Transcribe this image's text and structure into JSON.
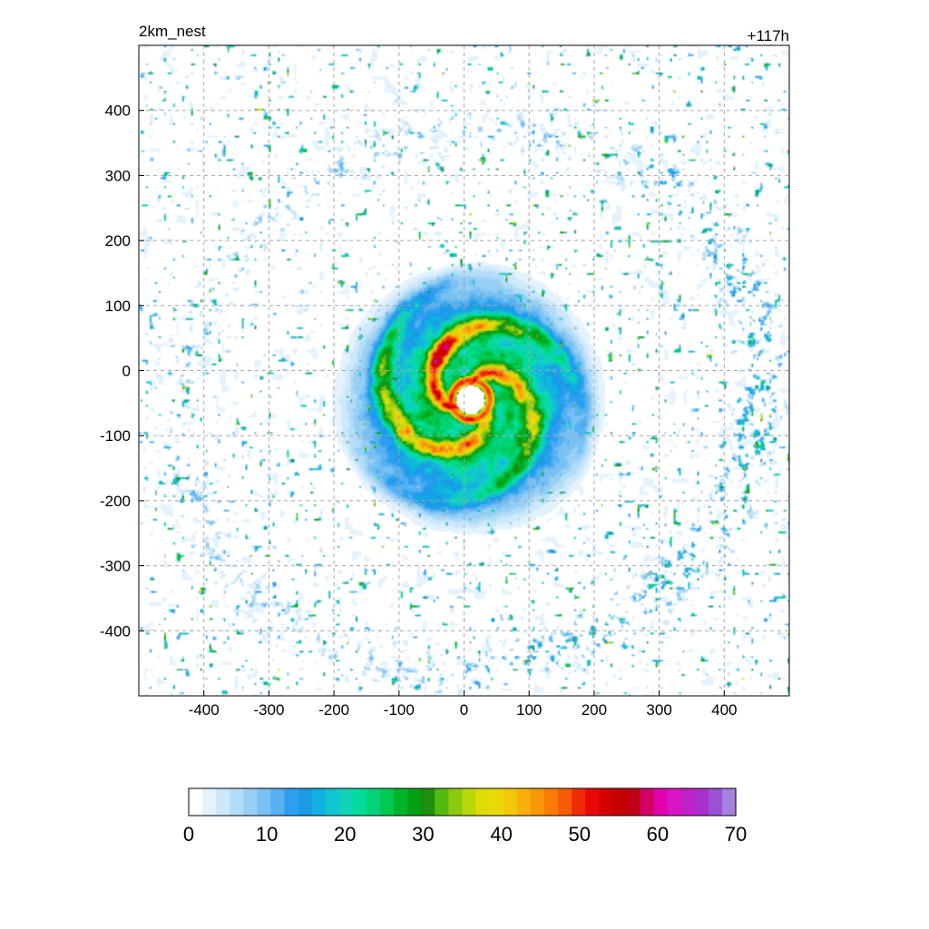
{
  "header": {
    "left_label": "2km_nest",
    "right_label": "+117h"
  },
  "chart_data": {
    "type": "heatmap",
    "title": "",
    "xlabel": "",
    "ylabel": "",
    "xlim": [
      -500,
      500
    ],
    "ylim": [
      -500,
      500
    ],
    "xticks": [
      -400,
      -300,
      -200,
      -100,
      0,
      100,
      200,
      300,
      400
    ],
    "yticks": [
      -400,
      -300,
      -200,
      -100,
      0,
      100,
      200,
      300,
      400
    ],
    "grid": true,
    "field": {
      "center": [
        10,
        -45
      ],
      "eye_radius": 22,
      "eyewall_value": 50,
      "core_radius": 95,
      "rainband_max_radius": 235,
      "outer_band_radius": 430
    },
    "colorbar": {
      "orientation": "horizontal",
      "placement": "bottom",
      "min": 0,
      "max": 70,
      "step": 2,
      "tick_values": [
        0,
        10,
        20,
        30,
        40,
        50,
        60,
        70
      ],
      "tick_labels": [
        "0",
        "10",
        "20",
        "30",
        "40",
        "50",
        "60",
        "70"
      ],
      "colors": [
        "#ffffff",
        "#e3f2fd",
        "#cde8fb",
        "#b3dcf8",
        "#97cff5",
        "#79c1f3",
        "#55b1f1",
        "#2d9ff0",
        "#1a9be8",
        "#10b0e0",
        "#10c4d0",
        "#10d4b8",
        "#00dc9a",
        "#00d278",
        "#00c850",
        "#00b42a",
        "#00a015",
        "#1e8e0c",
        "#55b810",
        "#8cca10",
        "#b8d80c",
        "#dcdc08",
        "#ecd808",
        "#f4c808",
        "#f8b008",
        "#f89808",
        "#f87c08",
        "#f85c08",
        "#f02c08",
        "#e80808",
        "#d40000",
        "#c40000",
        "#c00014",
        "#d40064",
        "#e000ac",
        "#d814c4",
        "#c020c8",
        "#aa30cc",
        "#9c50d4",
        "#a880e0"
      ]
    }
  }
}
